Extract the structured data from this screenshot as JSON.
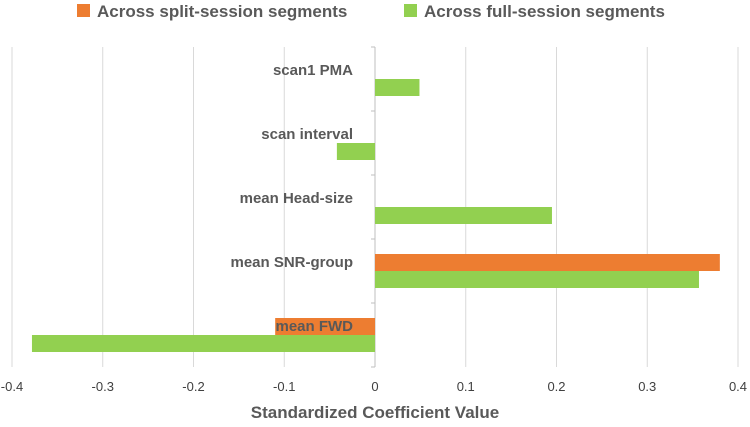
{
  "chart_data": {
    "type": "bar",
    "orientation": "horizontal",
    "title": "",
    "xlabel": "Standardized Coefficient Value",
    "ylabel": "",
    "xlim": [
      -0.4,
      0.4
    ],
    "xticks": [
      "-0.4",
      "-0.3",
      "-0.2",
      "-0.1",
      "0",
      "0.1",
      "0.2",
      "0.3",
      "0.4"
    ],
    "categories": [
      "scan1 PMA",
      "scan interval",
      "mean Head-size",
      "mean SNR-group",
      "mean FWD"
    ],
    "series": [
      {
        "name": "Across split-session segments",
        "color": "#ED7D31",
        "values": [
          null,
          null,
          null,
          0.38,
          -0.11
        ]
      },
      {
        "name": "Across full-session segments",
        "color": "#92D050",
        "values": [
          0.049,
          -0.042,
          0.195,
          0.357,
          -0.378
        ]
      }
    ],
    "grid": "vertical",
    "legend_position": "top"
  }
}
